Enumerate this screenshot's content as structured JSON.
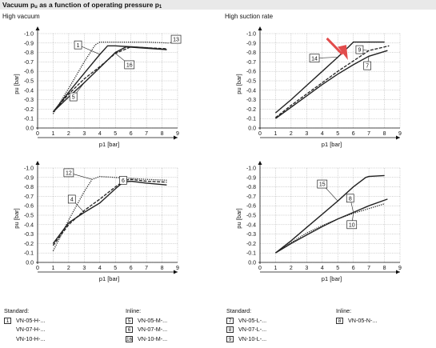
{
  "header": {
    "title_prefix": "Vacuum p",
    "title_sub": "u",
    "title_mid": " as a function of operating pressure p",
    "title_sub2": "1",
    "left_heading": "High vacuum",
    "right_heading": "High suction rate"
  },
  "chart_data": [
    {
      "id": "chart-high-vacuum-top",
      "type": "line",
      "xlabel": "p1 [bar]",
      "ylabel": "pu [bar]",
      "xlim": [
        0,
        9
      ],
      "ylim": [
        0,
        -1.0
      ],
      "xticks": [
        "0",
        "1",
        "2",
        "3",
        "4",
        "5",
        "6",
        "7",
        "8",
        "9"
      ],
      "yticks": [
        "0.0",
        "-0.1",
        "-0.2",
        "-0.3",
        "-0.4",
        "-0.5",
        "-0.6",
        "-0.7",
        "-0.8",
        "-0.9",
        "-1.0"
      ],
      "series": [
        {
          "name": "1",
          "style": "solid",
          "points": [
            [
              1,
              -0.17
            ],
            [
              2,
              -0.38
            ],
            [
              3,
              -0.58
            ],
            [
              4,
              -0.78
            ],
            [
              4.5,
              -0.87
            ],
            [
              5,
              -0.87
            ],
            [
              6,
              -0.86
            ],
            [
              7,
              -0.85
            ],
            [
              8.3,
              -0.83
            ]
          ]
        },
        {
          "name": "13",
          "style": "dotted",
          "points": [
            [
              1,
              -0.15
            ],
            [
              2,
              -0.42
            ],
            [
              3,
              -0.7
            ],
            [
              3.7,
              -0.88
            ],
            [
              4,
              -0.91
            ],
            [
              5,
              -0.91
            ],
            [
              6,
              -0.91
            ],
            [
              7,
              -0.91
            ],
            [
              8.5,
              -0.9
            ]
          ]
        },
        {
          "name": "16",
          "style": "dashed",
          "points": [
            [
              1,
              -0.17
            ],
            [
              2,
              -0.36
            ],
            [
              3,
              -0.52
            ],
            [
              4,
              -0.65
            ],
            [
              5,
              -0.79
            ],
            [
              6,
              -0.86
            ],
            [
              7,
              -0.85
            ],
            [
              8.3,
              -0.84
            ]
          ]
        },
        {
          "name": "5",
          "style": "solid",
          "points": [
            [
              1,
              -0.17
            ],
            [
              2,
              -0.33
            ],
            [
              3,
              -0.48
            ],
            [
              4,
              -0.64
            ],
            [
              5,
              -0.8
            ],
            [
              5.7,
              -0.86
            ],
            [
              6.5,
              -0.85
            ],
            [
              8.3,
              -0.83
            ]
          ]
        }
      ],
      "callouts": [
        "1",
        "13",
        "16",
        "5"
      ]
    },
    {
      "id": "chart-high-suction-top",
      "type": "line",
      "xlabel": "p1 [bar]",
      "ylabel": "pu [bar]",
      "xlim": [
        0,
        9
      ],
      "ylim": [
        0,
        -1.0
      ],
      "xticks": [
        "0",
        "1",
        "2",
        "3",
        "4",
        "5",
        "6",
        "7",
        "8",
        "9"
      ],
      "yticks": [
        "0.0",
        "-0.1",
        "-0.2",
        "-0.3",
        "-0.4",
        "-0.5",
        "-0.6",
        "-0.7",
        "-0.8",
        "-0.9",
        "-1.0"
      ],
      "series": [
        {
          "name": "14",
          "style": "solid",
          "points": [
            [
              1,
              -0.16
            ],
            [
              2,
              -0.3
            ],
            [
              3,
              -0.45
            ],
            [
              4,
              -0.6
            ],
            [
              5,
              -0.75
            ],
            [
              5.7,
              -0.86
            ],
            [
              6,
              -0.91
            ],
            [
              7,
              -0.91
            ],
            [
              8,
              -0.91
            ]
          ]
        },
        {
          "name": "9",
          "style": "dashed",
          "points": [
            [
              1,
              -0.11
            ],
            [
              2,
              -0.24
            ],
            [
              3,
              -0.36
            ],
            [
              4,
              -0.48
            ],
            [
              5,
              -0.6
            ],
            [
              6,
              -0.71
            ],
            [
              7,
              -0.82
            ],
            [
              8.3,
              -0.87
            ]
          ]
        },
        {
          "name": "7",
          "style": "solid",
          "points": [
            [
              1,
              -0.1
            ],
            [
              2,
              -0.22
            ],
            [
              3,
              -0.34
            ],
            [
              4,
              -0.46
            ],
            [
              5,
              -0.57
            ],
            [
              6,
              -0.67
            ],
            [
              7,
              -0.76
            ],
            [
              8.2,
              -0.82
            ]
          ]
        }
      ],
      "callouts": [
        "14",
        "9",
        "7"
      ]
    },
    {
      "id": "chart-high-vacuum-bottom",
      "type": "line",
      "xlabel": "p1 [bar]",
      "ylabel": "pu [bar]",
      "xlim": [
        0,
        9
      ],
      "ylim": [
        0,
        -1.0
      ],
      "xticks": [
        "0",
        "1",
        "2",
        "3",
        "4",
        "5",
        "6",
        "7",
        "8",
        "9"
      ],
      "yticks": [
        "0.0",
        "-0.1",
        "-0.2",
        "-0.3",
        "-0.4",
        "-0.5",
        "-0.6",
        "-0.7",
        "-0.8",
        "-0.9",
        "-1.0"
      ],
      "series": [
        {
          "name": "12",
          "style": "dotted",
          "points": [
            [
              1,
              -0.12
            ],
            [
              2,
              -0.45
            ],
            [
              3,
              -0.75
            ],
            [
              3.5,
              -0.88
            ],
            [
              4,
              -0.91
            ],
            [
              5,
              -0.9
            ],
            [
              6,
              -0.89
            ],
            [
              7,
              -0.88
            ],
            [
              8.3,
              -0.87
            ]
          ]
        },
        {
          "name": "4",
          "style": "solid",
          "points": [
            [
              1,
              -0.2
            ],
            [
              2,
              -0.42
            ],
            [
              3,
              -0.53
            ],
            [
              4,
              -0.63
            ],
            [
              5,
              -0.78
            ],
            [
              5.5,
              -0.85
            ],
            [
              6,
              -0.86
            ],
            [
              7,
              -0.84
            ],
            [
              8.3,
              -0.82
            ]
          ]
        },
        {
          "name": "6",
          "style": "dashed",
          "points": [
            [
              1,
              -0.18
            ],
            [
              2,
              -0.4
            ],
            [
              3,
              -0.55
            ],
            [
              4,
              -0.67
            ],
            [
              5,
              -0.8
            ],
            [
              5.6,
              -0.87
            ],
            [
              6,
              -0.88
            ],
            [
              7,
              -0.86
            ],
            [
              8.3,
              -0.85
            ]
          ]
        }
      ],
      "callouts": [
        "12",
        "4",
        "6"
      ]
    },
    {
      "id": "chart-high-suction-bottom",
      "type": "line",
      "xlabel": "p1 [bar]",
      "ylabel": "pu [bar]",
      "xlim": [
        0,
        9
      ],
      "ylim": [
        0,
        -1.0
      ],
      "xticks": [
        "0",
        "1",
        "2",
        "3",
        "4",
        "5",
        "6",
        "7",
        "8",
        "9"
      ],
      "yticks": [
        "0.0",
        "-0.1",
        "-0.2",
        "-0.3",
        "-0.4",
        "-0.5",
        "-0.6",
        "-0.7",
        "-0.8",
        "-0.9",
        "-1.0"
      ],
      "series": [
        {
          "name": "15",
          "style": "solid",
          "points": [
            [
              1,
              -0.1
            ],
            [
              2,
              -0.23
            ],
            [
              3,
              -0.37
            ],
            [
              4,
              -0.51
            ],
            [
              5,
              -0.65
            ],
            [
              6,
              -0.8
            ],
            [
              6.8,
              -0.9
            ],
            [
              7,
              -0.91
            ],
            [
              8,
              -0.92
            ]
          ]
        },
        {
          "name": "8",
          "style": "solid",
          "points": [
            [
              1,
              -0.1
            ],
            [
              2,
              -0.2
            ],
            [
              3,
              -0.29
            ],
            [
              4,
              -0.38
            ],
            [
              5,
              -0.46
            ],
            [
              6,
              -0.53
            ],
            [
              7,
              -0.6
            ],
            [
              8.2,
              -0.67
            ]
          ]
        },
        {
          "name": "10",
          "style": "dotted",
          "points": [
            [
              1,
              -0.1
            ],
            [
              2,
              -0.21
            ],
            [
              3,
              -0.31
            ],
            [
              4,
              -0.39
            ],
            [
              5,
              -0.46
            ],
            [
              6,
              -0.52
            ],
            [
              7,
              -0.57
            ],
            [
              8,
              -0.62
            ]
          ]
        }
      ],
      "callouts": [
        "15",
        "8",
        "10"
      ]
    }
  ],
  "legends": {
    "left": {
      "standard_title": "Standard:",
      "inline_title": "Inline:",
      "standard": [
        {
          "key": "1",
          "label": "VN-05-H-..."
        },
        {
          "key": "",
          "label": "VN-07-H-..."
        },
        {
          "key": "",
          "label": "VN-10-H-..."
        }
      ],
      "inline": [
        {
          "key": "5",
          "label": "VN-05-M-..."
        },
        {
          "key": "6",
          "label": "VN-07-M-..."
        },
        {
          "key": "16",
          "label": "VN-10-M-..."
        }
      ]
    },
    "right": {
      "standard_title": "Standard:",
      "inline_title": "Inline:",
      "standard": [
        {
          "key": "7",
          "label": "VN-05-L-..."
        },
        {
          "key": "8",
          "label": "VN-07-L-..."
        },
        {
          "key": "9",
          "label": "VN-10-L-..."
        }
      ],
      "inline": [
        {
          "key": "8",
          "label": "VN-05-N-..."
        }
      ]
    }
  },
  "colors": {
    "line": "#222222",
    "grid": "#8a8a8a",
    "highlight_arrow": "#e24c4c",
    "title_bg": "#e9e9e9"
  }
}
